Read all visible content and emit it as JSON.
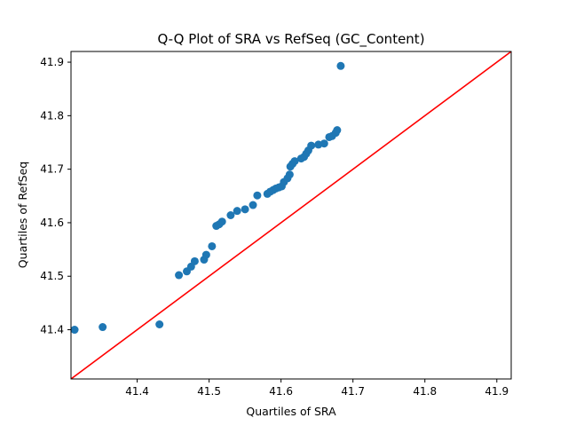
{
  "chart_data": {
    "type": "scatter",
    "title": "Q-Q Plot of SRA vs RefSeq (GC_Content)",
    "xlabel": "Quartiles of SRA",
    "ylabel": "Quartiles of RefSeq",
    "xlim": [
      41.308,
      41.92
    ],
    "ylim": [
      41.308,
      41.92
    ],
    "xticks": [
      "41.4",
      "41.5",
      "41.6",
      "41.7",
      "41.8",
      "41.9"
    ],
    "yticks": [
      "41.4",
      "41.5",
      "41.6",
      "41.7",
      "41.8",
      "41.9"
    ],
    "grid": false,
    "colors": {
      "points": "#1f77b4",
      "reference_line": "#ff0000"
    },
    "reference_line": {
      "from": [
        41.308,
        41.308
      ],
      "to": [
        41.92,
        41.92
      ]
    },
    "x": [
      41.313,
      41.352,
      41.431,
      41.458,
      41.469,
      41.475,
      41.48,
      41.493,
      41.496,
      41.504,
      41.51,
      41.514,
      41.518,
      41.53,
      41.539,
      41.55,
      41.561,
      41.567,
      41.581,
      41.585,
      41.589,
      41.593,
      41.597,
      41.601,
      41.604,
      41.609,
      41.612,
      41.613,
      41.616,
      41.619,
      41.628,
      41.632,
      41.635,
      41.638,
      41.642,
      41.652,
      41.66,
      41.667,
      41.671,
      41.676,
      41.678,
      41.683
    ],
    "y": [
      41.4,
      41.405,
      41.41,
      41.502,
      41.509,
      41.518,
      41.528,
      41.531,
      41.54,
      41.556,
      41.594,
      41.597,
      41.602,
      41.614,
      41.622,
      41.625,
      41.633,
      41.651,
      41.654,
      41.658,
      41.661,
      41.664,
      41.666,
      41.668,
      41.676,
      41.683,
      41.69,
      41.705,
      41.71,
      41.715,
      41.72,
      41.723,
      41.729,
      41.735,
      41.744,
      41.746,
      41.748,
      41.76,
      41.762,
      41.768,
      41.773,
      41.893
    ]
  }
}
